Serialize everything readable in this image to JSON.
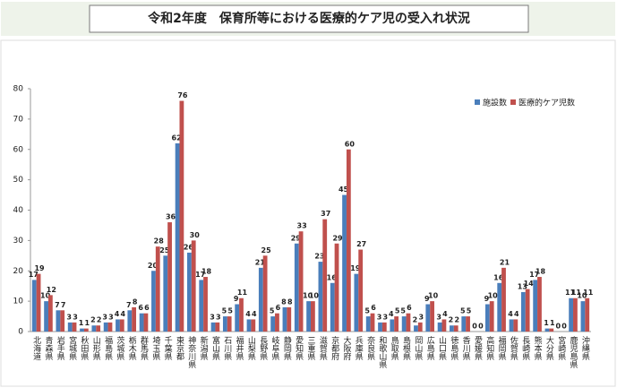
{
  "chart_data": {
    "type": "bar",
    "title": "令和2年度　保育所等における医療的ケア児の受入れ状況",
    "categories": [
      "北海道",
      "青森県",
      "岩手県",
      "宮城県",
      "秋田県",
      "山形県",
      "福島県",
      "茨城県",
      "栃木県",
      "群馬県",
      "埼玉県",
      "千葉県",
      "東京都",
      "神奈川県",
      "新潟県",
      "富山県",
      "石川県",
      "福井県",
      "山梨県",
      "長野県",
      "岐阜県",
      "静岡県",
      "愛知県",
      "三重県",
      "滋賀県",
      "京都府",
      "大阪府",
      "兵庫県",
      "奈良県",
      "和歌山県",
      "鳥取県",
      "島根県",
      "岡山県",
      "広島県",
      "山口県",
      "徳島県",
      "香川県",
      "愛媛県",
      "高知県",
      "福岡県",
      "佐賀県",
      "長崎県",
      "熊本県",
      "大分県",
      "宮崎県",
      "鹿児島県",
      "沖縄県"
    ],
    "series": [
      {
        "name": "施設数",
        "color": "#4a7ebb",
        "values": [
          17,
          10,
          7,
          3,
          1,
          2,
          3,
          4,
          7,
          6,
          20,
          25,
          62,
          26,
          17,
          3,
          5,
          9,
          4,
          21,
          5,
          8,
          29,
          10,
          23,
          16,
          45,
          19,
          5,
          3,
          4,
          5,
          2,
          9,
          3,
          2,
          5,
          0,
          9,
          16,
          4,
          13,
          17,
          1,
          0,
          11,
          10
        ]
      },
      {
        "name": "医療的ケア児数",
        "color": "#c0504d",
        "values": [
          19,
          12,
          7,
          3,
          1,
          2,
          3,
          4,
          8,
          6,
          28,
          36,
          76,
          30,
          18,
          3,
          5,
          11,
          4,
          25,
          6,
          8,
          33,
          10,
          37,
          29,
          60,
          27,
          6,
          3,
          5,
          6,
          3,
          10,
          4,
          2,
          5,
          0,
          10,
          21,
          4,
          14,
          18,
          1,
          0,
          11,
          11
        ]
      }
    ],
    "ylim": [
      0,
      80
    ],
    "yticks": [
      0,
      10,
      20,
      30,
      40,
      50,
      60,
      70,
      80
    ],
    "grid": false,
    "legend": "upper right"
  }
}
